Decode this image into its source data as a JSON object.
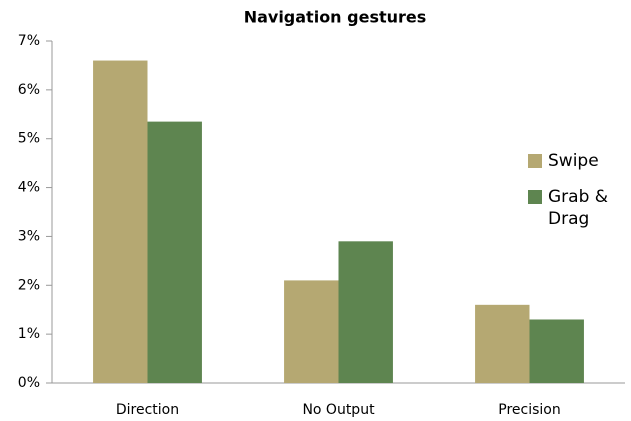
{
  "chart_data": {
    "type": "bar",
    "title": "Navigation gestures",
    "categories": [
      "Direction",
      "No Output",
      "Precision"
    ],
    "series": [
      {
        "name": "Swipe",
        "color": "#b5a872",
        "values": [
          6.6,
          2.1,
          1.6
        ]
      },
      {
        "name": "Grab & Drag",
        "color": "#5e8550",
        "values": [
          5.35,
          2.9,
          1.3
        ]
      }
    ],
    "ylim": [
      0,
      7
    ],
    "yticks": [
      {
        "value": 0,
        "label": "0%"
      },
      {
        "value": 1,
        "label": "1%"
      },
      {
        "value": 2,
        "label": "2%"
      },
      {
        "value": 3,
        "label": "3%"
      },
      {
        "value": 4,
        "label": "4%"
      },
      {
        "value": 5,
        "label": "5%"
      },
      {
        "value": 6,
        "label": "6%"
      },
      {
        "value": 7,
        "label": "7%"
      }
    ],
    "grid": false,
    "legend": "right"
  }
}
